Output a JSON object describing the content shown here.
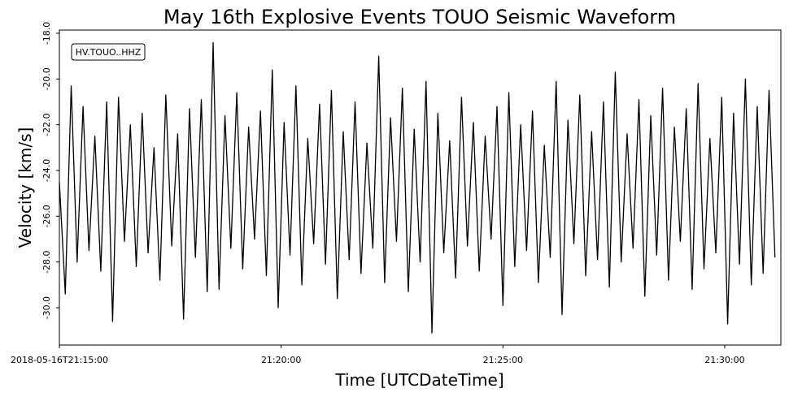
{
  "chart_data": {
    "type": "line",
    "title": "May 16th Explosive Events TOUO Seismic Waveform",
    "x_label": "Time [UTCDateTime]",
    "y_label": "Velocity [km/s]",
    "annotation": "HV.TOUO..HHZ",
    "color": "#000000",
    "x": [
      "2018-05-16T21:15:00",
      "2018-05-16T21:15:08",
      "2018-05-16T21:15:16",
      "2018-05-16T21:15:24",
      "2018-05-16T21:15:32",
      "2018-05-16T21:15:40",
      "2018-05-16T21:15:48",
      "2018-05-16T21:15:56",
      "2018-05-16T21:16:04",
      "2018-05-16T21:16:12",
      "2018-05-16T21:16:20",
      "2018-05-16T21:16:28",
      "2018-05-16T21:16:36",
      "2018-05-16T21:16:44",
      "2018-05-16T21:16:52",
      "2018-05-16T21:17:00",
      "2018-05-16T21:17:08",
      "2018-05-16T21:17:16",
      "2018-05-16T21:17:24",
      "2018-05-16T21:17:32",
      "2018-05-16T21:17:40",
      "2018-05-16T21:17:48",
      "2018-05-16T21:17:56",
      "2018-05-16T21:18:04",
      "2018-05-16T21:18:12",
      "2018-05-16T21:18:20",
      "2018-05-16T21:18:28",
      "2018-05-16T21:18:36",
      "2018-05-16T21:18:44",
      "2018-05-16T21:18:52",
      "2018-05-16T21:19:00",
      "2018-05-16T21:19:08",
      "2018-05-16T21:19:16",
      "2018-05-16T21:19:24",
      "2018-05-16T21:19:32",
      "2018-05-16T21:19:40",
      "2018-05-16T21:19:48",
      "2018-05-16T21:19:56",
      "2018-05-16T21:20:04",
      "2018-05-16T21:20:12",
      "2018-05-16T21:20:20",
      "2018-05-16T21:20:28",
      "2018-05-16T21:20:36",
      "2018-05-16T21:20:44",
      "2018-05-16T21:20:52",
      "2018-05-16T21:21:00",
      "2018-05-16T21:21:08",
      "2018-05-16T21:21:16",
      "2018-05-16T21:21:24",
      "2018-05-16T21:21:32",
      "2018-05-16T21:21:40",
      "2018-05-16T21:21:48",
      "2018-05-16T21:21:56",
      "2018-05-16T21:22:04",
      "2018-05-16T21:22:12",
      "2018-05-16T21:22:20",
      "2018-05-16T21:22:28",
      "2018-05-16T21:22:36",
      "2018-05-16T21:22:44",
      "2018-05-16T21:22:52",
      "2018-05-16T21:23:00",
      "2018-05-16T21:23:08",
      "2018-05-16T21:23:16",
      "2018-05-16T21:23:24",
      "2018-05-16T21:23:32",
      "2018-05-16T21:23:40",
      "2018-05-16T21:23:48",
      "2018-05-16T21:23:56",
      "2018-05-16T21:24:04",
      "2018-05-16T21:24:12",
      "2018-05-16T21:24:20",
      "2018-05-16T21:24:28",
      "2018-05-16T21:24:36",
      "2018-05-16T21:24:44",
      "2018-05-16T21:24:52",
      "2018-05-16T21:25:00",
      "2018-05-16T21:25:08",
      "2018-05-16T21:25:16",
      "2018-05-16T21:25:24",
      "2018-05-16T21:25:32",
      "2018-05-16T21:25:40",
      "2018-05-16T21:25:48",
      "2018-05-16T21:25:56",
      "2018-05-16T21:26:04",
      "2018-05-16T21:26:12",
      "2018-05-16T21:26:20",
      "2018-05-16T21:26:28",
      "2018-05-16T21:26:36",
      "2018-05-16T21:26:44",
      "2018-05-16T21:26:52",
      "2018-05-16T21:27:00",
      "2018-05-16T21:27:08",
      "2018-05-16T21:27:16",
      "2018-05-16T21:27:24",
      "2018-05-16T21:27:32",
      "2018-05-16T21:27:40",
      "2018-05-16T21:27:48",
      "2018-05-16T21:27:56",
      "2018-05-16T21:28:04",
      "2018-05-16T21:28:12",
      "2018-05-16T21:28:20",
      "2018-05-16T21:28:28",
      "2018-05-16T21:28:36",
      "2018-05-16T21:28:44",
      "2018-05-16T21:28:52",
      "2018-05-16T21:29:00",
      "2018-05-16T21:29:08",
      "2018-05-16T21:29:16",
      "2018-05-16T21:29:24",
      "2018-05-16T21:29:32",
      "2018-05-16T21:29:40",
      "2018-05-16T21:29:48",
      "2018-05-16T21:29:56",
      "2018-05-16T21:30:04",
      "2018-05-16T21:30:12",
      "2018-05-16T21:30:20",
      "2018-05-16T21:30:28",
      "2018-05-16T21:30:36",
      "2018-05-16T21:30:44",
      "2018-05-16T21:30:52",
      "2018-05-16T21:31:00",
      "2018-05-16T21:31:08"
    ],
    "values": [
      -24.5,
      -29.4,
      -20.3,
      -28.0,
      -21.2,
      -27.5,
      -22.5,
      -28.4,
      -21.0,
      -30.6,
      -20.8,
      -27.1,
      -22.0,
      -28.2,
      -21.5,
      -27.6,
      -23.0,
      -28.8,
      -20.7,
      -27.3,
      -22.4,
      -30.5,
      -21.3,
      -27.8,
      -20.9,
      -29.3,
      -18.4,
      -29.2,
      -21.6,
      -27.4,
      -20.6,
      -28.3,
      -22.1,
      -27.0,
      -21.4,
      -28.6,
      -19.6,
      -30.0,
      -21.9,
      -27.7,
      -20.3,
      -29.0,
      -22.6,
      -27.2,
      -21.1,
      -28.1,
      -20.5,
      -29.6,
      -22.3,
      -27.9,
      -21.0,
      -28.5,
      -22.8,
      -27.4,
      -19.0,
      -28.9,
      -21.7,
      -27.1,
      -20.4,
      -29.3,
      -22.2,
      -28.0,
      -20.1,
      -31.1,
      -21.5,
      -27.6,
      -22.7,
      -28.7,
      -20.8,
      -27.3,
      -21.9,
      -28.4,
      -22.5,
      -27.0,
      -21.2,
      -29.9,
      -20.6,
      -28.2,
      -22.0,
      -27.5,
      -21.4,
      -28.9,
      -22.9,
      -27.8,
      -20.1,
      -30.3,
      -21.8,
      -27.2,
      -20.7,
      -28.6,
      -22.3,
      -27.9,
      -21.0,
      -29.1,
      -19.7,
      -28.0,
      -22.4,
      -27.4,
      -20.9,
      -29.5,
      -21.6,
      -27.7,
      -20.4,
      -28.8,
      -22.1,
      -27.1,
      -21.3,
      -29.2,
      -20.2,
      -28.3,
      -22.6,
      -27.6,
      -20.8,
      -30.7,
      -21.5,
      -28.1,
      -20.0,
      -29.0,
      -21.2,
      -28.5,
      -20.5,
      -27.8
    ],
    "xlim": [
      "2018-05-16T21:15:00",
      "2018-05-16T21:31:16"
    ],
    "xticks": [
      {
        "value": "2018-05-16T21:15:00",
        "label": "2018-05-16T21:15:00"
      },
      {
        "value": "2018-05-16T21:20:00",
        "label": "21:20:00"
      },
      {
        "value": "2018-05-16T21:25:00",
        "label": "21:25:00"
      },
      {
        "value": "2018-05-16T21:30:00",
        "label": "21:30:00"
      }
    ],
    "ylim": [
      -31.63,
      -17.86
    ],
    "yticks": [
      {
        "value": -18,
        "label": "-18.0"
      },
      {
        "value": -20,
        "label": "-20.0"
      },
      {
        "value": -22,
        "label": "-22.0"
      },
      {
        "value": -24,
        "label": "-24.0"
      },
      {
        "value": -26,
        "label": "-26.0"
      },
      {
        "value": -28,
        "label": "-28.0"
      },
      {
        "value": -30,
        "label": "-30.0"
      }
    ]
  }
}
